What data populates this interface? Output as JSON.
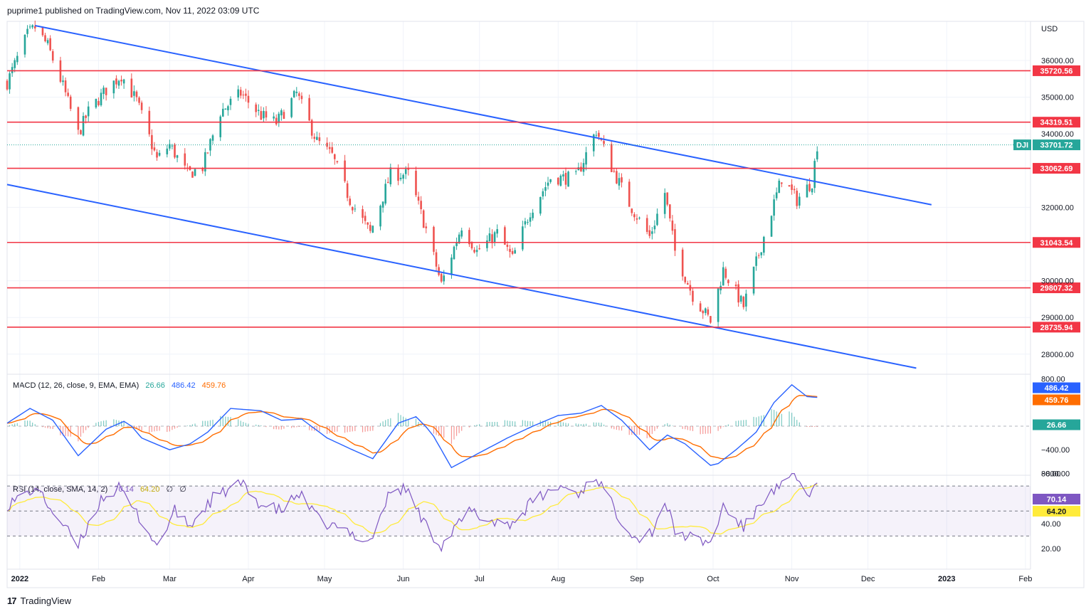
{
  "header": {
    "published": "puprime1 published on TradingView.com, Nov 11, 2022 03:09 UTC"
  },
  "footer": {
    "brand": "TradingView",
    "logo": "17"
  },
  "colors": {
    "up": "#26a69a",
    "down": "#ef5350",
    "trend": "#2962ff",
    "level": "#f23645",
    "macd": "#2962ff",
    "signal": "#ff6d00",
    "hist_up": "#26a69a",
    "hist_down": "#ef5350",
    "rsi": "#7e57c2",
    "rsi_ma": "#ffeb3b"
  },
  "chart_data": [
    {
      "type": "candlestick",
      "symbol": "DJI",
      "currency": "USD",
      "last_price": "33701.72",
      "y_ticks": [
        "36000.00",
        "35000.00",
        "34000.00",
        "32000.00",
        "30000.00",
        "29000.00",
        "28000.00"
      ],
      "x_ticks": [
        "2022",
        "Feb",
        "Mar",
        "Apr",
        "May",
        "Jun",
        "Jul",
        "Aug",
        "Sep",
        "Oct",
        "Nov",
        "Dec",
        "2023",
        "Feb"
      ],
      "levels": [
        "35720.56",
        "34319.51",
        "33062.69",
        "31043.54",
        "29807.32",
        "28735.94"
      ],
      "trendlines": [
        {
          "from": [
            "2022-01-07",
            36950
          ],
          "to": [
            "2022-12-26",
            32070
          ]
        },
        {
          "from": [
            "2021-12-27",
            32620
          ],
          "to": [
            "2022-12-20",
            27620
          ]
        }
      ],
      "price_path": [
        [
          "2021-12-27",
          35400
        ],
        [
          "2022-01-04",
          36700
        ],
        [
          "2022-01-07",
          36900
        ],
        [
          "2022-01-12",
          36400
        ],
        [
          "2022-01-18",
          35300
        ],
        [
          "2022-01-24",
          34000
        ],
        [
          "2022-01-28",
          34600
        ],
        [
          "2022-02-04",
          35200
        ],
        [
          "2022-02-10",
          35600
        ],
        [
          "2022-02-16",
          34900
        ],
        [
          "2022-02-24",
          33300
        ],
        [
          "2022-03-01",
          33700
        ],
        [
          "2022-03-08",
          32900
        ],
        [
          "2022-03-14",
          33100
        ],
        [
          "2022-03-21",
          34600
        ],
        [
          "2022-03-29",
          35100
        ],
        [
          "2022-04-06",
          34500
        ],
        [
          "2022-04-12",
          34300
        ],
        [
          "2022-04-20",
          35100
        ],
        [
          "2022-04-28",
          33800
        ],
        [
          "2022-05-04",
          33400
        ],
        [
          "2022-05-11",
          32200
        ],
        [
          "2022-05-19",
          31300
        ],
        [
          "2022-05-27",
          32900
        ],
        [
          "2022-06-03",
          32900
        ],
        [
          "2022-06-10",
          31400
        ],
        [
          "2022-06-16",
          29900
        ],
        [
          "2022-06-24",
          31500
        ],
        [
          "2022-06-30",
          30800
        ],
        [
          "2022-07-08",
          31300
        ],
        [
          "2022-07-14",
          30600
        ],
        [
          "2022-07-21",
          31900
        ],
        [
          "2022-07-29",
          32800
        ],
        [
          "2022-08-08",
          32800
        ],
        [
          "2022-08-16",
          34100
        ],
        [
          "2022-08-22",
          33100
        ],
        [
          "2022-08-29",
          32100
        ],
        [
          "2022-09-06",
          31200
        ],
        [
          "2022-09-12",
          32400
        ],
        [
          "2022-09-16",
          30800
        ],
        [
          "2022-09-23",
          29600
        ],
        [
          "2022-09-30",
          28900
        ],
        [
          "2022-10-05",
          30300
        ],
        [
          "2022-10-13",
          29300
        ],
        [
          "2022-10-21",
          31200
        ],
        [
          "2022-10-28",
          32800
        ],
        [
          "2022-11-03",
          32200
        ],
        [
          "2022-11-09",
          32700
        ],
        [
          "2022-11-11",
          33700
        ]
      ]
    },
    {
      "type": "line",
      "indicator": "MACD",
      "legend": "MACD (12, 26, close, 9, EMA, EMA)",
      "values": {
        "histogram": "26.66",
        "macd": "486.42",
        "signal": "459.76"
      },
      "y_ticks": [
        "800.00",
        "−400.00",
        "−800.00"
      ],
      "series_path": [
        [
          "2021-12-27",
          50
        ],
        [
          "2022-01-05",
          300
        ],
        [
          "2022-01-14",
          100
        ],
        [
          "2022-01-24",
          -500
        ],
        [
          "2022-02-04",
          -50
        ],
        [
          "2022-02-12",
          100
        ],
        [
          "2022-02-18",
          -200
        ],
        [
          "2022-03-01",
          -400
        ],
        [
          "2022-03-09",
          -300
        ],
        [
          "2022-03-16",
          -100
        ],
        [
          "2022-03-25",
          300
        ],
        [
          "2022-04-06",
          260
        ],
        [
          "2022-04-14",
          100
        ],
        [
          "2022-04-22",
          120
        ],
        [
          "2022-05-02",
          -200
        ],
        [
          "2022-05-12",
          -400
        ],
        [
          "2022-05-20",
          -550
        ],
        [
          "2022-05-30",
          50
        ],
        [
          "2022-06-06",
          160
        ],
        [
          "2022-06-12",
          -100
        ],
        [
          "2022-06-20",
          -700
        ],
        [
          "2022-07-01",
          -450
        ],
        [
          "2022-07-12",
          -200
        ],
        [
          "2022-07-22",
          0
        ],
        [
          "2022-08-01",
          180
        ],
        [
          "2022-08-10",
          220
        ],
        [
          "2022-08-18",
          350
        ],
        [
          "2022-08-26",
          100
        ],
        [
          "2022-09-06",
          -400
        ],
        [
          "2022-09-13",
          -150
        ],
        [
          "2022-09-20",
          -300
        ],
        [
          "2022-10-01",
          -700
        ],
        [
          "2022-10-10",
          -400
        ],
        [
          "2022-10-18",
          -100
        ],
        [
          "2022-10-25",
          400
        ],
        [
          "2022-11-01",
          700
        ],
        [
          "2022-11-07",
          500
        ],
        [
          "2022-11-11",
          486
        ]
      ]
    },
    {
      "type": "line",
      "indicator": "RSI",
      "legend": "RSI (14, close, SMA, 14, 2)",
      "values": {
        "rsi": "70.14",
        "rsi_ma": "64.20"
      },
      "flags": [
        "∅",
        "∅"
      ],
      "bands": [
        70,
        50,
        30
      ],
      "y_ticks": [
        "80.00",
        "40.00",
        "20.00"
      ],
      "series_path": [
        [
          "2021-12-27",
          55
        ],
        [
          "2022-01-07",
          68
        ],
        [
          "2022-01-14",
          50
        ],
        [
          "2022-01-24",
          22
        ],
        [
          "2022-02-02",
          60
        ],
        [
          "2022-02-09",
          68
        ],
        [
          "2022-02-18",
          42
        ],
        [
          "2022-02-24",
          22
        ],
        [
          "2022-03-03",
          50
        ],
        [
          "2022-03-09",
          38
        ],
        [
          "2022-03-18",
          60
        ],
        [
          "2022-03-29",
          72
        ],
        [
          "2022-04-06",
          55
        ],
        [
          "2022-04-14",
          50
        ],
        [
          "2022-04-21",
          64
        ],
        [
          "2022-04-29",
          42
        ],
        [
          "2022-05-09",
          34
        ],
        [
          "2022-05-19",
          26
        ],
        [
          "2022-05-27",
          66
        ],
        [
          "2022-06-02",
          68
        ],
        [
          "2022-06-10",
          38
        ],
        [
          "2022-06-16",
          22
        ],
        [
          "2022-06-27",
          50
        ],
        [
          "2022-07-05",
          42
        ],
        [
          "2022-07-14",
          40
        ],
        [
          "2022-07-22",
          58
        ],
        [
          "2022-08-02",
          70
        ],
        [
          "2022-08-09",
          64
        ],
        [
          "2022-08-16",
          78
        ],
        [
          "2022-08-24",
          48
        ],
        [
          "2022-09-01",
          28
        ],
        [
          "2022-09-07",
          34
        ],
        [
          "2022-09-12",
          58
        ],
        [
          "2022-09-16",
          34
        ],
        [
          "2022-09-23",
          28
        ],
        [
          "2022-09-30",
          24
        ],
        [
          "2022-10-05",
          54
        ],
        [
          "2022-10-13",
          36
        ],
        [
          "2022-10-21",
          60
        ],
        [
          "2022-10-28",
          70
        ],
        [
          "2022-11-02",
          78
        ],
        [
          "2022-11-07",
          64
        ],
        [
          "2022-11-11",
          70
        ]
      ]
    }
  ]
}
